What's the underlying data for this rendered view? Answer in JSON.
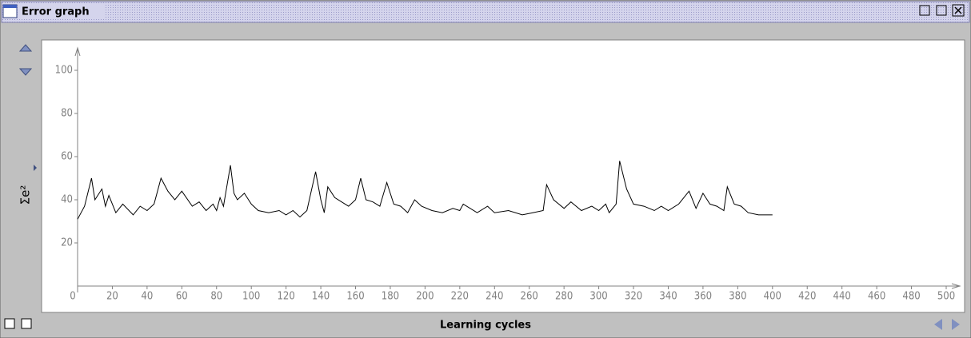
{
  "window_title": "Error graph",
  "chart_data": {
    "type": "line",
    "x_label": "Learning cycles",
    "y_label": "Σe²",
    "xlim": [
      0,
      500
    ],
    "ylim": [
      0,
      100
    ],
    "xticks": [
      0,
      20,
      40,
      60,
      80,
      100,
      120,
      140,
      160,
      180,
      200,
      220,
      240,
      260,
      280,
      300,
      320,
      340,
      360,
      380,
      400,
      420,
      440,
      460,
      480,
      500
    ],
    "yticks": [
      20,
      40,
      60,
      80,
      100
    ],
    "series": [
      {
        "color": "#000000",
        "x": [
          0,
          4,
          8,
          10,
          14,
          16,
          18,
          22,
          26,
          32,
          36,
          40,
          44,
          48,
          52,
          56,
          60,
          66,
          70,
          74,
          78,
          80,
          82,
          84,
          88,
          90,
          92,
          96,
          100,
          104,
          110,
          116,
          120,
          124,
          128,
          132,
          137,
          140,
          142,
          144,
          148,
          152,
          156,
          160,
          163,
          166,
          170,
          174,
          178,
          182,
          186,
          190,
          194,
          198,
          204,
          210,
          216,
          220,
          222,
          230,
          236,
          240,
          248,
          256,
          262,
          268,
          270,
          274,
          280,
          284,
          290,
          296,
          300,
          304,
          306,
          310,
          312,
          316,
          320,
          326,
          332,
          336,
          340,
          346,
          352,
          356,
          360,
          364,
          368,
          372,
          374,
          378,
          382,
          386,
          392,
          396,
          400
        ],
        "values": [
          31,
          37,
          50,
          40,
          45,
          37,
          42,
          34,
          38,
          33,
          37,
          35,
          38,
          50,
          44,
          40,
          44,
          37,
          39,
          35,
          38,
          35,
          41,
          37,
          56,
          43,
          40,
          43,
          38,
          35,
          34,
          35,
          33,
          35,
          32,
          35,
          53,
          40,
          34,
          46,
          41,
          39,
          37,
          40,
          50,
          40,
          39,
          37,
          48,
          38,
          37,
          34,
          40,
          37,
          35,
          34,
          36,
          35,
          38,
          34,
          37,
          34,
          35,
          33,
          34,
          35,
          47,
          40,
          36,
          39,
          35,
          37,
          35,
          38,
          34,
          38,
          58,
          45,
          38,
          37,
          35,
          37,
          35,
          38,
          44,
          36,
          43,
          38,
          37,
          35,
          46,
          38,
          37,
          34,
          33,
          33,
          33
        ]
      }
    ]
  }
}
